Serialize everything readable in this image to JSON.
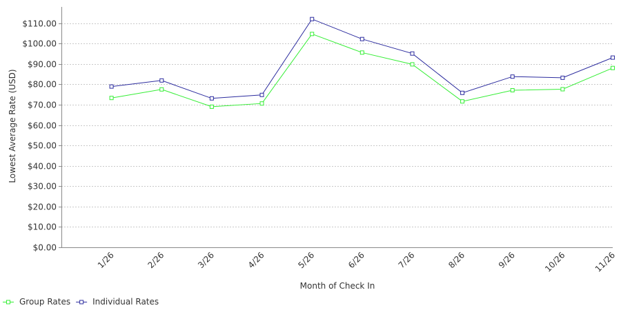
{
  "chart_data": {
    "type": "line",
    "title": "",
    "xlabel": "Month of Check In",
    "ylabel": "Lowest Average Rate (USD)",
    "categories": [
      "1/26",
      "2/26",
      "3/26",
      "4/26",
      "5/26",
      "6/26",
      "7/26",
      "8/26",
      "9/26",
      "10/26",
      "11/26"
    ],
    "series": [
      {
        "name": "Group Rates",
        "color": "#33ee33",
        "values": [
          73.3,
          77.5,
          69.0,
          70.6,
          104.7,
          95.6,
          89.8,
          71.6,
          77.1,
          77.6,
          88.0
        ]
      },
      {
        "name": "Individual Rates",
        "color": "#2b2b9e",
        "values": [
          78.9,
          81.9,
          73.1,
          74.8,
          112.0,
          102.2,
          95.1,
          75.8,
          83.8,
          83.2,
          93.1
        ]
      }
    ],
    "ylim": [
      0,
      118
    ],
    "yticks": [
      0,
      10,
      20,
      30,
      40,
      50,
      60,
      70,
      80,
      90,
      100,
      110
    ],
    "ytick_labels": [
      "$0.00",
      "$10.00",
      "$20.00",
      "$30.00",
      "$40.00",
      "$50.00",
      "$60.00",
      "$70.00",
      "$80.00",
      "$90.00",
      "$100.00",
      "$110.00"
    ],
    "grid": true,
    "legend_position": "bottom-left"
  }
}
